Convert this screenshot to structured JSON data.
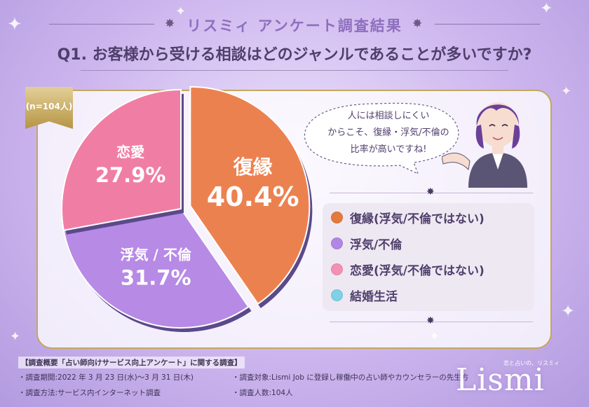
{
  "header": {
    "survey_title": "リスミィ アンケート調査結果",
    "question": "Q1. お客様から受ける相談はどのジャンルであることが多いですか?"
  },
  "badge": {
    "sample_size": "(n=104人)"
  },
  "chart_data": {
    "type": "pie",
    "title": "",
    "slices": [
      {
        "label": "復縁",
        "value": 40.4,
        "display": "40.4%",
        "color": "#ec8150"
      },
      {
        "label": "浮気 / 不倫",
        "value": 31.7,
        "display": "31.7%",
        "color": "#b78ae6"
      },
      {
        "label": "恋愛",
        "value": 27.9,
        "display": "27.9%",
        "color": "#f07ea4"
      }
    ]
  },
  "bubble": {
    "line1": "人には相談しにくい",
    "line2": "からこそ、復縁・浮気/不倫の",
    "line3": "比率が高いですね!"
  },
  "legend": [
    {
      "label": "復縁(浮気/不倫ではない)",
      "color": "#e47a3c"
    },
    {
      "label": "浮気/不倫",
      "color": "#b286e4"
    },
    {
      "label": "恋愛(浮気/不倫ではない)",
      "color": "#f490b4"
    },
    {
      "label": "結婚生活",
      "color": "#7ed1e6"
    }
  ],
  "footer": {
    "heading": "【調査概要「占い師向けサービス向上アンケート」に関する調査】",
    "period": "・調査期間:2022 年 3 月 23 日(水)〜3 月 31 日(木)",
    "method": "・調査方法:サービス内インターネット調査",
    "target": "・調査対象:Lismi Job に登録し稼働中の占い師やカウンセラーの先生方",
    "count": "・調査人数:104人"
  },
  "logo": {
    "text": "Lismi",
    "tagline": "恋と占いの、リスミィ"
  }
}
